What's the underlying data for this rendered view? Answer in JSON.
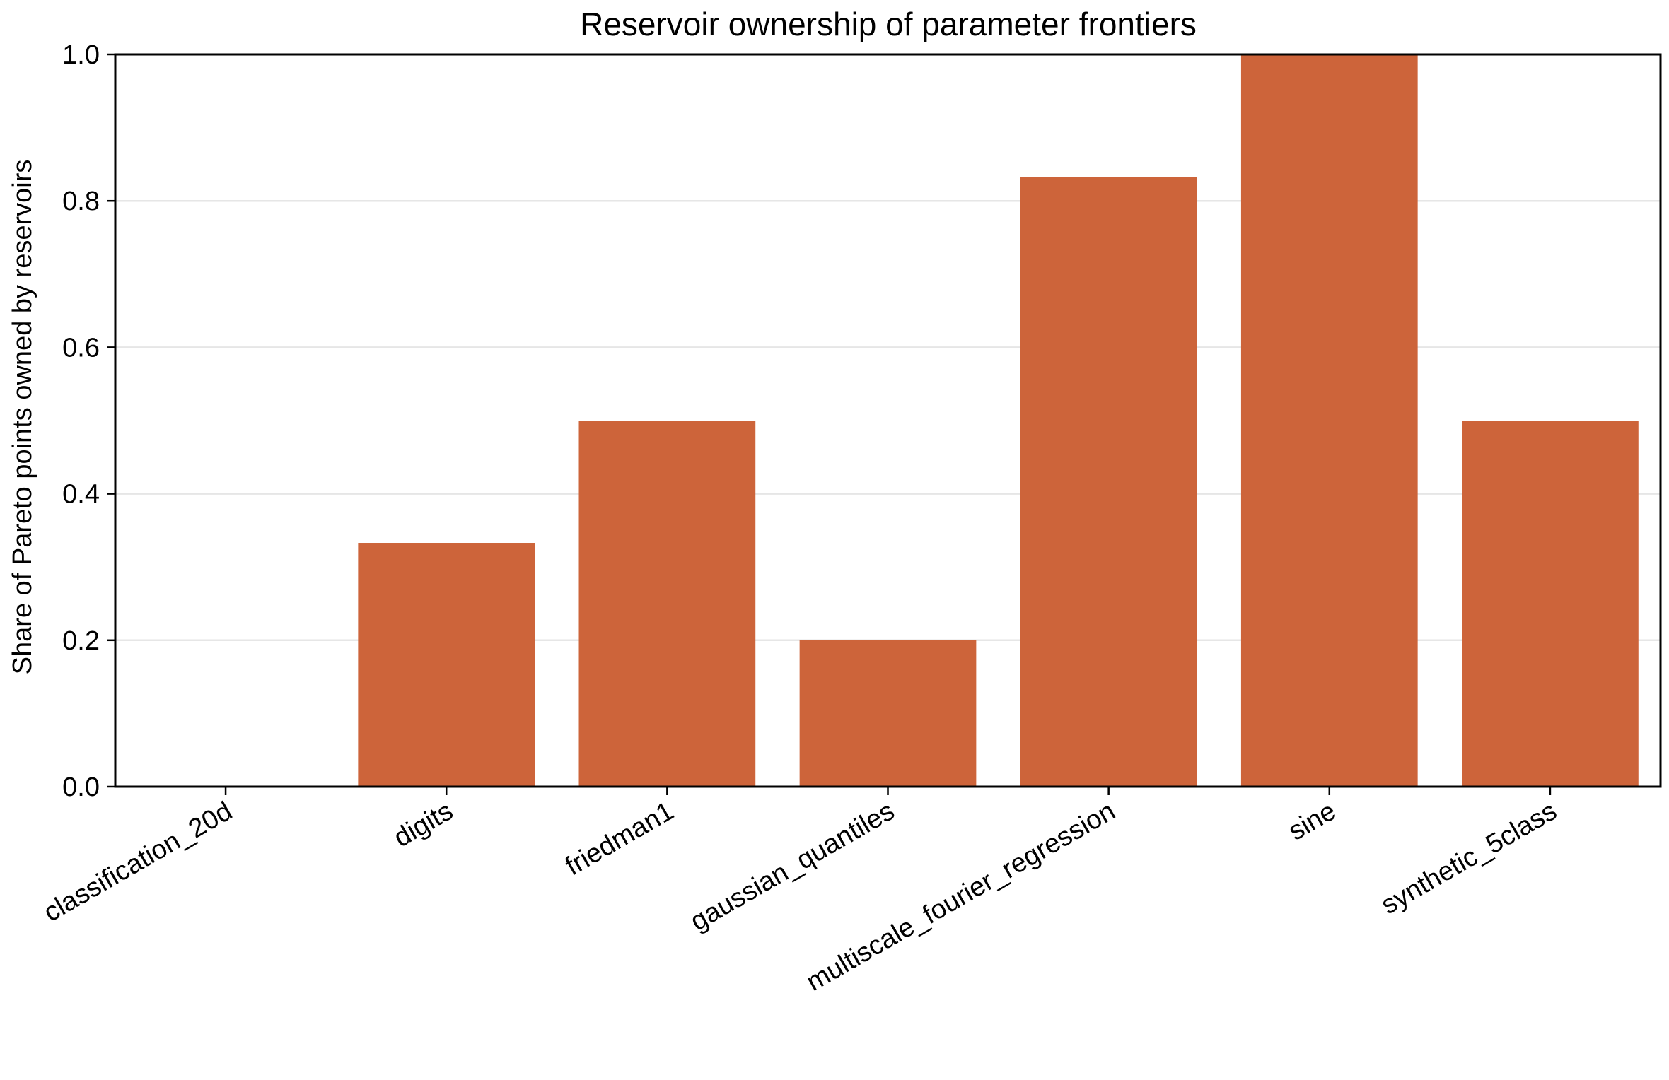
{
  "chart_data": {
    "type": "bar",
    "title": "Reservoir ownership of parameter frontiers",
    "xlabel": "",
    "ylabel": "Share of Pareto points owned by reservoirs",
    "categories": [
      "classification_20d",
      "digits",
      "friedman1",
      "gaussian_quantiles",
      "multiscale_fourier_regression",
      "sine",
      "synthetic_5class"
    ],
    "values": [
      0.0,
      0.333,
      0.5,
      0.2,
      0.833,
      1.0,
      0.5
    ],
    "ylim": [
      0,
      1.0
    ],
    "yticks": [
      "0.0",
      "0.2",
      "0.4",
      "0.6",
      "0.8",
      "1.0"
    ],
    "grid": "horizontal",
    "legend": "none",
    "colors": {
      "bar": "#cd643a",
      "grid": "#e6e6e6",
      "axis": "#000000"
    }
  }
}
